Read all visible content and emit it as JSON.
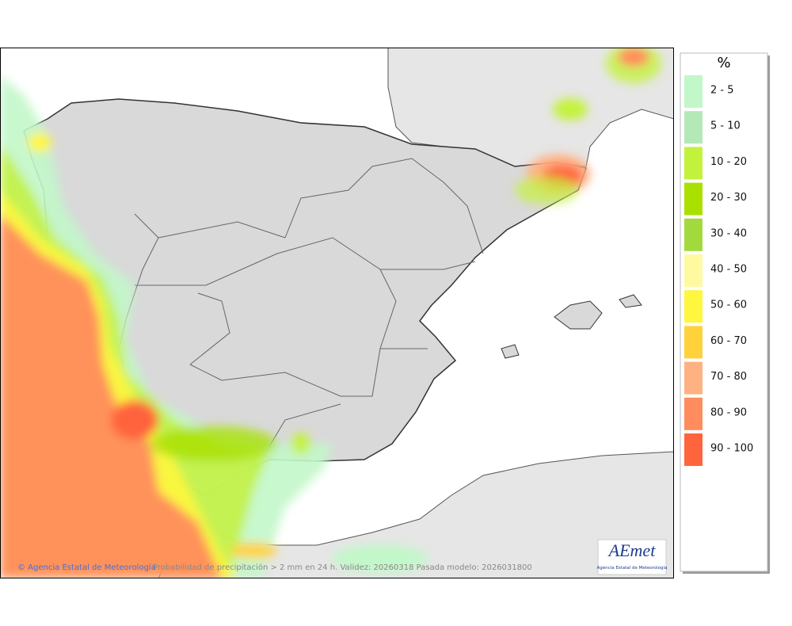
{
  "map": {
    "legend": {
      "title": "%",
      "items": [
        {
          "label": "2 - 5",
          "color": "#c2f7c9"
        },
        {
          "label": "5 - 10",
          "color": "#b5e8b7"
        },
        {
          "label": "10 - 20",
          "color": "#c3f23c"
        },
        {
          "label": "20 - 30",
          "color": "#a9e000"
        },
        {
          "label": "30 - 40",
          "color": "#a2d93c"
        },
        {
          "label": "40 - 50",
          "color": "#fffaa0"
        },
        {
          "label": "50 - 60",
          "color": "#fff63e"
        },
        {
          "label": "60 - 70",
          "color": "#ffd23c"
        },
        {
          "label": "70 - 80",
          "color": "#ffb182"
        },
        {
          "label": "80 - 90",
          "color": "#ff8c5c"
        },
        {
          "label": "90 - 100",
          "color": "#ff643c"
        }
      ]
    },
    "footer": {
      "credit": "© Agencia Estatal de Meteorología",
      "caption": "Probabilidad de precipitación > 2 mm en 24 h. Validez: 20260318 Pasada modelo: 2026031800"
    },
    "logo": {
      "name": "AEmet",
      "subtitle": "Agencia Estatal de Meteorología"
    }
  }
}
